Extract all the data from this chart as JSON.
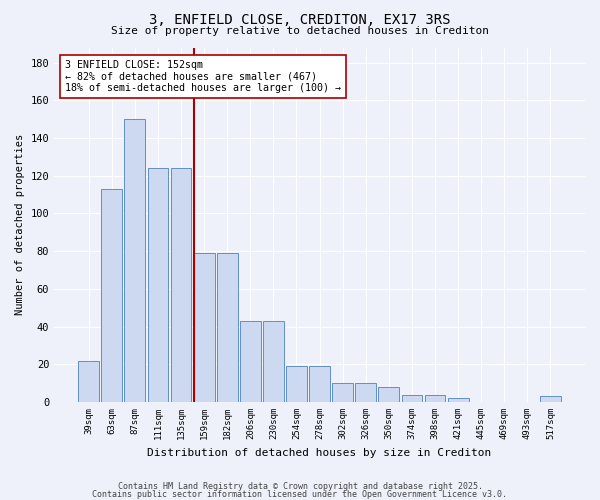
{
  "title1": "3, ENFIELD CLOSE, CREDITON, EX17 3RS",
  "title2": "Size of property relative to detached houses in Crediton",
  "xlabel": "Distribution of detached houses by size in Crediton",
  "ylabel": "Number of detached properties",
  "categories": [
    "39sqm",
    "63sqm",
    "87sqm",
    "111sqm",
    "135sqm",
    "159sqm",
    "182sqm",
    "206sqm",
    "230sqm",
    "254sqm",
    "278sqm",
    "302sqm",
    "326sqm",
    "350sqm",
    "374sqm",
    "398sqm",
    "421sqm",
    "445sqm",
    "469sqm",
    "493sqm",
    "517sqm"
  ],
  "values": [
    22,
    113,
    150,
    124,
    124,
    79,
    79,
    43,
    43,
    19,
    19,
    10,
    10,
    8,
    4,
    4,
    2,
    0,
    0,
    0,
    3
  ],
  "bar_color": "#ccd9f0",
  "bar_edge_color": "#6090c8",
  "red_line_index": 5,
  "annotation_text": "3 ENFIELD CLOSE: 152sqm\n← 82% of detached houses are smaller (467)\n18% of semi-detached houses are larger (100) →",
  "annotation_box_color": "#ffffff",
  "annotation_box_edge": "#aa0000",
  "red_line_color": "#aa0000",
  "ylim": [
    0,
    188
  ],
  "yticks": [
    0,
    20,
    40,
    60,
    80,
    100,
    120,
    140,
    160,
    180
  ],
  "bg_color": "#eef1fa",
  "grid_color": "#ffffff",
  "footer1": "Contains HM Land Registry data © Crown copyright and database right 2025.",
  "footer2": "Contains public sector information licensed under the Open Government Licence v3.0."
}
